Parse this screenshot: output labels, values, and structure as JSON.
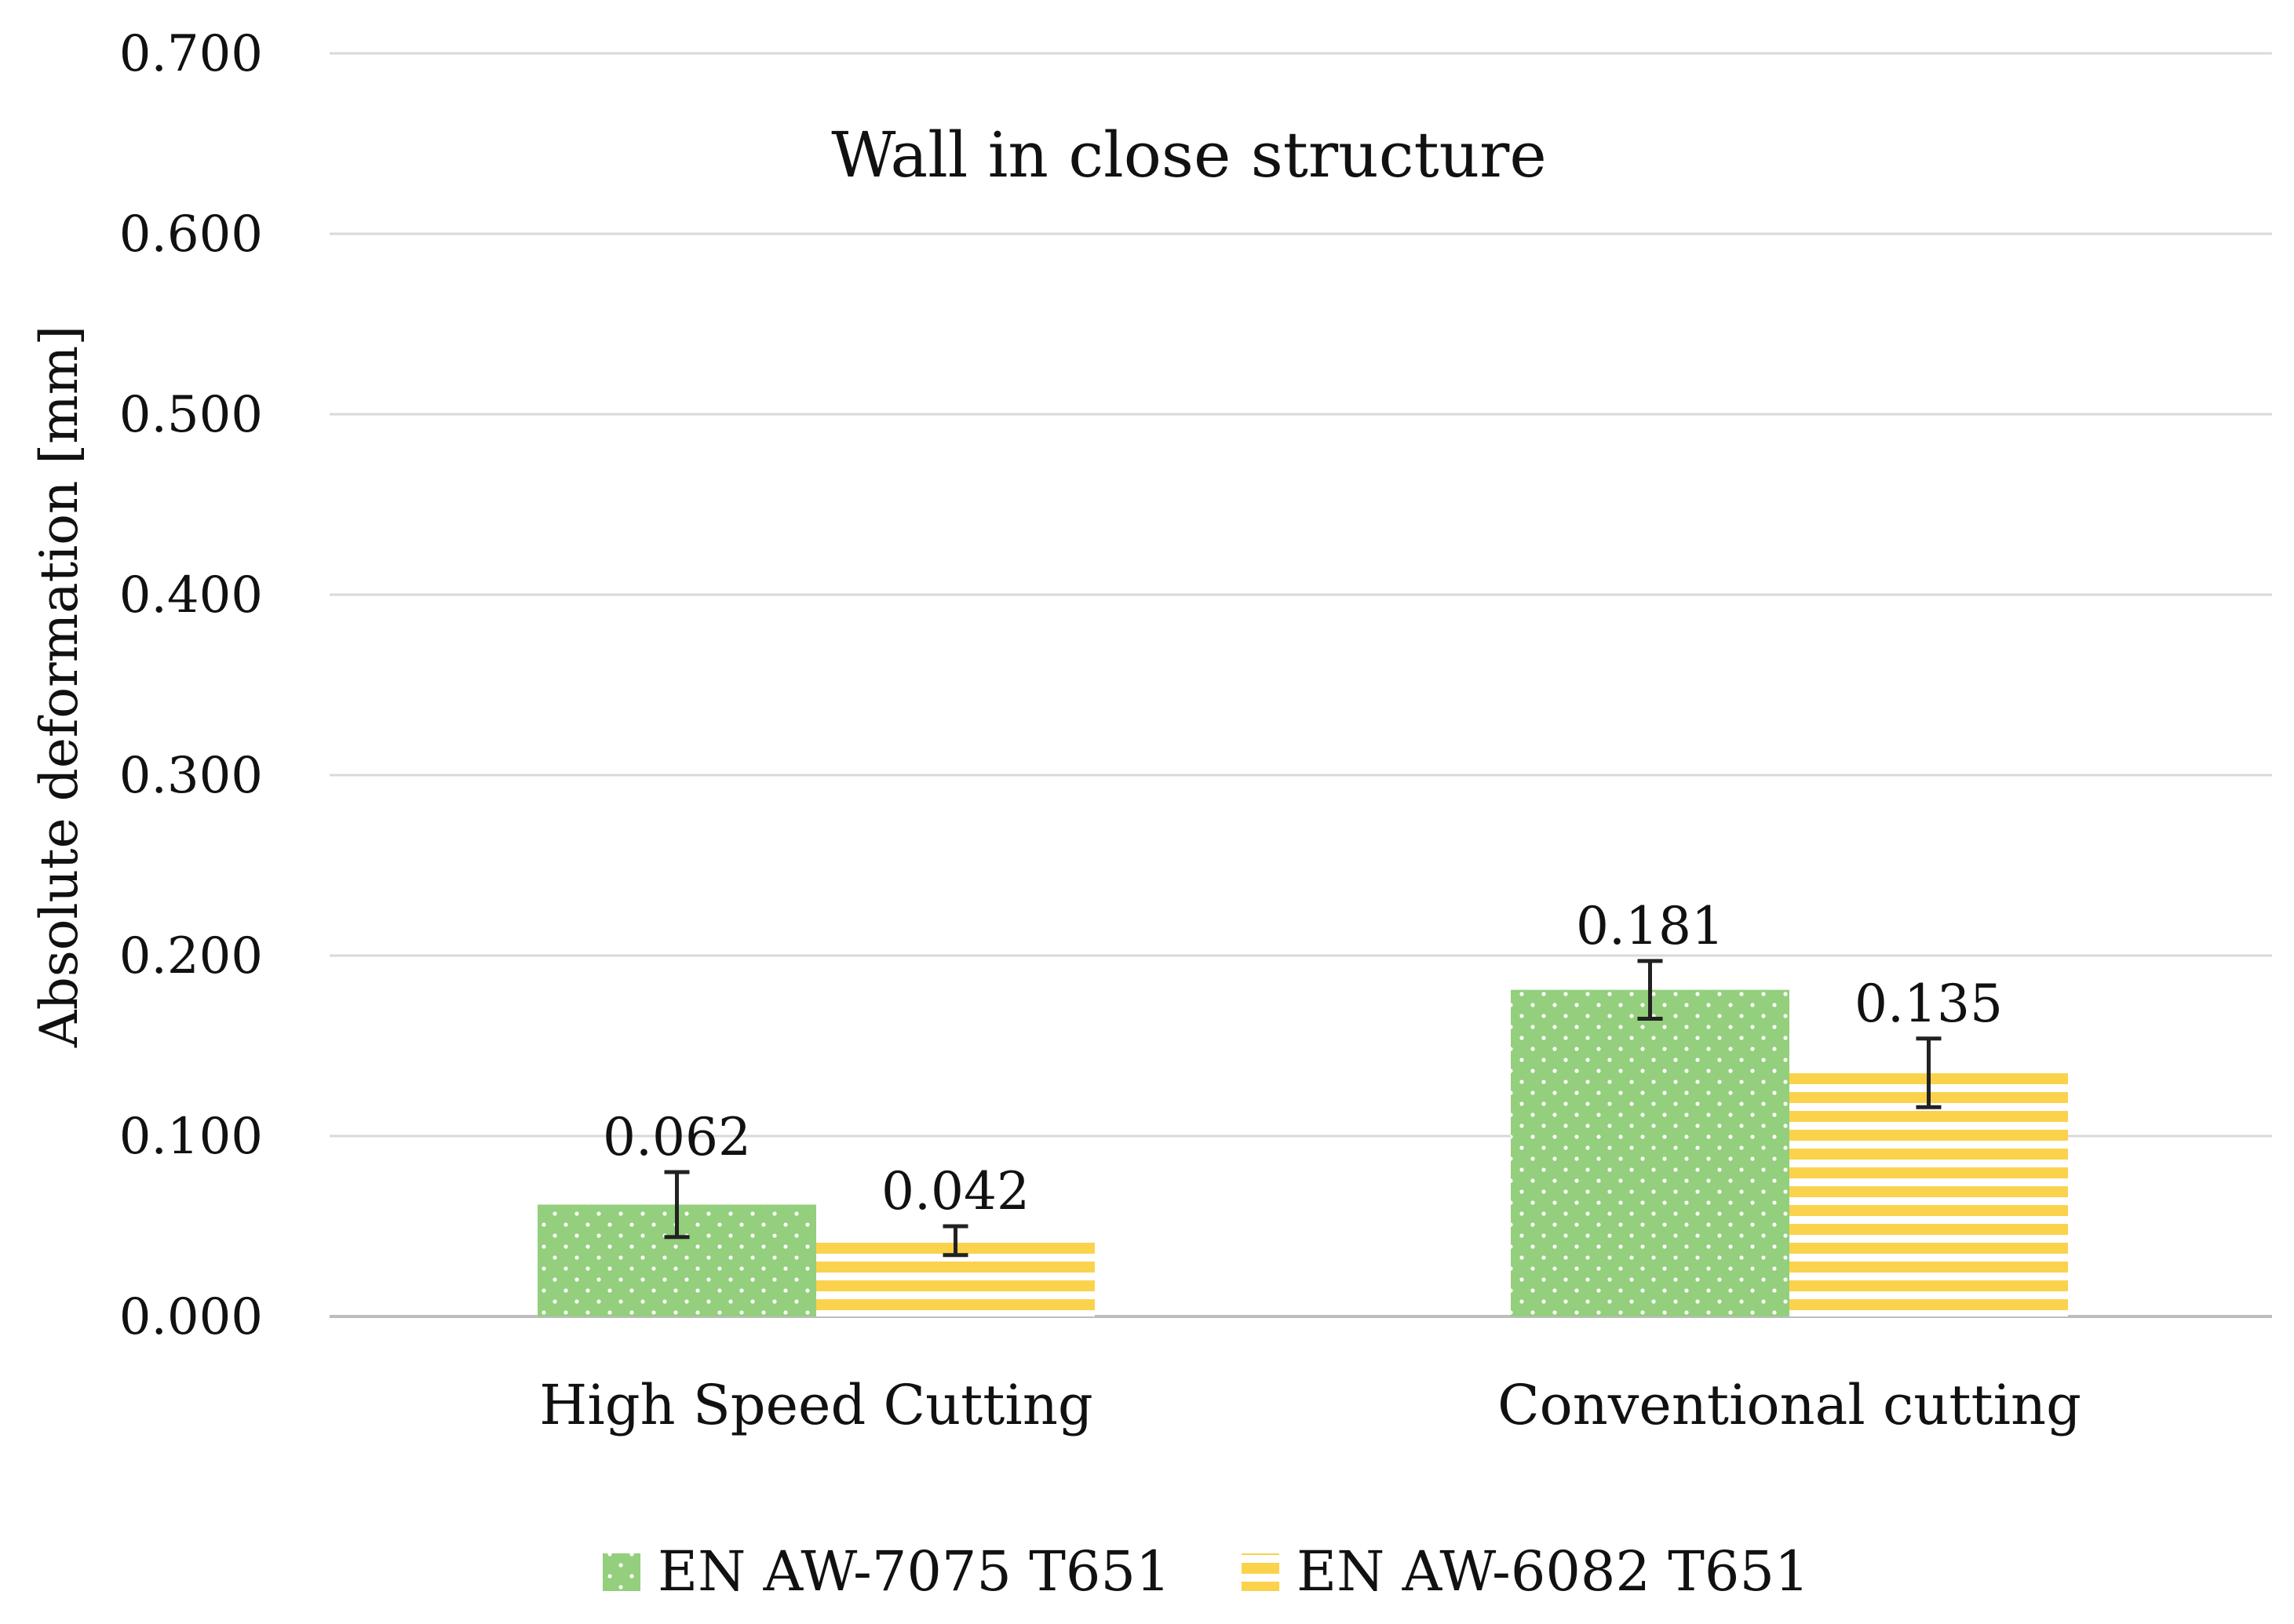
{
  "chart_data": {
    "type": "bar",
    "title": "Wall in close structure",
    "xlabel": "",
    "ylabel": "Absolute deformation [mm]",
    "ylim": [
      0,
      0.7
    ],
    "yticks": [
      0.0,
      0.1,
      0.2,
      0.3,
      0.4,
      0.5,
      0.6,
      0.7
    ],
    "ytick_labels": [
      "0.000",
      "0.100",
      "0.200",
      "0.300",
      "0.400",
      "0.500",
      "0.600",
      "0.700"
    ],
    "grid": true,
    "legend_position": "bottom-center",
    "categories": [
      "High Speed Cutting",
      "Conventional cutting"
    ],
    "series": [
      {
        "name": "EN AW-7075 T651",
        "color": "#93cf7c",
        "pattern": "dots",
        "values": [
          0.062,
          0.181
        ],
        "value_labels": [
          "0.062",
          "0.181"
        ],
        "error": [
          0.018,
          0.016
        ]
      },
      {
        "name": "EN AW-6082 T651",
        "color": "#fbd24c",
        "pattern": "horizontal-stripes",
        "values": [
          0.042,
          0.135
        ],
        "value_labels": [
          "0.042",
          "0.135"
        ],
        "error": [
          0.008,
          0.019
        ]
      }
    ]
  }
}
